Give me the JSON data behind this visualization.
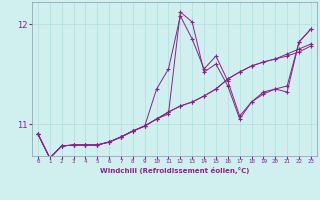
{
  "xlabel": "Windchill (Refroidissement éolien,°C)",
  "bg_color": "#d0f0f0",
  "grid_color": "#b0dede",
  "line_color": "#882288",
  "xlim": [
    -0.5,
    23.5
  ],
  "ylim": [
    10.68,
    12.22
  ],
  "yticks": [
    11,
    12
  ],
  "xticks": [
    0,
    1,
    2,
    3,
    4,
    5,
    6,
    7,
    8,
    9,
    10,
    11,
    12,
    13,
    14,
    15,
    16,
    17,
    18,
    19,
    20,
    21,
    22,
    23
  ],
  "series": [
    [
      10.9,
      10.66,
      10.78,
      10.79,
      10.79,
      10.79,
      10.82,
      10.87,
      10.93,
      10.98,
      11.35,
      11.55,
      12.08,
      11.85,
      11.55,
      11.68,
      11.43,
      11.08,
      11.22,
      11.32,
      11.35,
      11.38,
      11.82,
      11.95
    ],
    [
      10.9,
      10.66,
      10.78,
      10.79,
      10.79,
      10.79,
      10.82,
      10.87,
      10.93,
      10.98,
      11.05,
      11.12,
      11.18,
      11.22,
      11.28,
      11.35,
      11.45,
      11.52,
      11.58,
      11.62,
      11.65,
      11.7,
      11.75,
      11.8
    ],
    [
      10.9,
      10.66,
      10.78,
      10.79,
      10.79,
      10.79,
      10.82,
      10.87,
      10.93,
      10.98,
      11.05,
      11.12,
      11.18,
      11.22,
      11.28,
      11.35,
      11.45,
      11.52,
      11.58,
      11.62,
      11.65,
      11.68,
      11.72,
      11.78
    ],
    [
      10.9,
      10.66,
      10.78,
      10.79,
      10.79,
      10.79,
      10.82,
      10.87,
      10.93,
      10.98,
      11.05,
      11.1,
      12.12,
      12.02,
      11.52,
      11.6,
      11.38,
      11.05,
      11.22,
      11.3,
      11.35,
      11.32,
      11.82,
      11.95
    ]
  ]
}
